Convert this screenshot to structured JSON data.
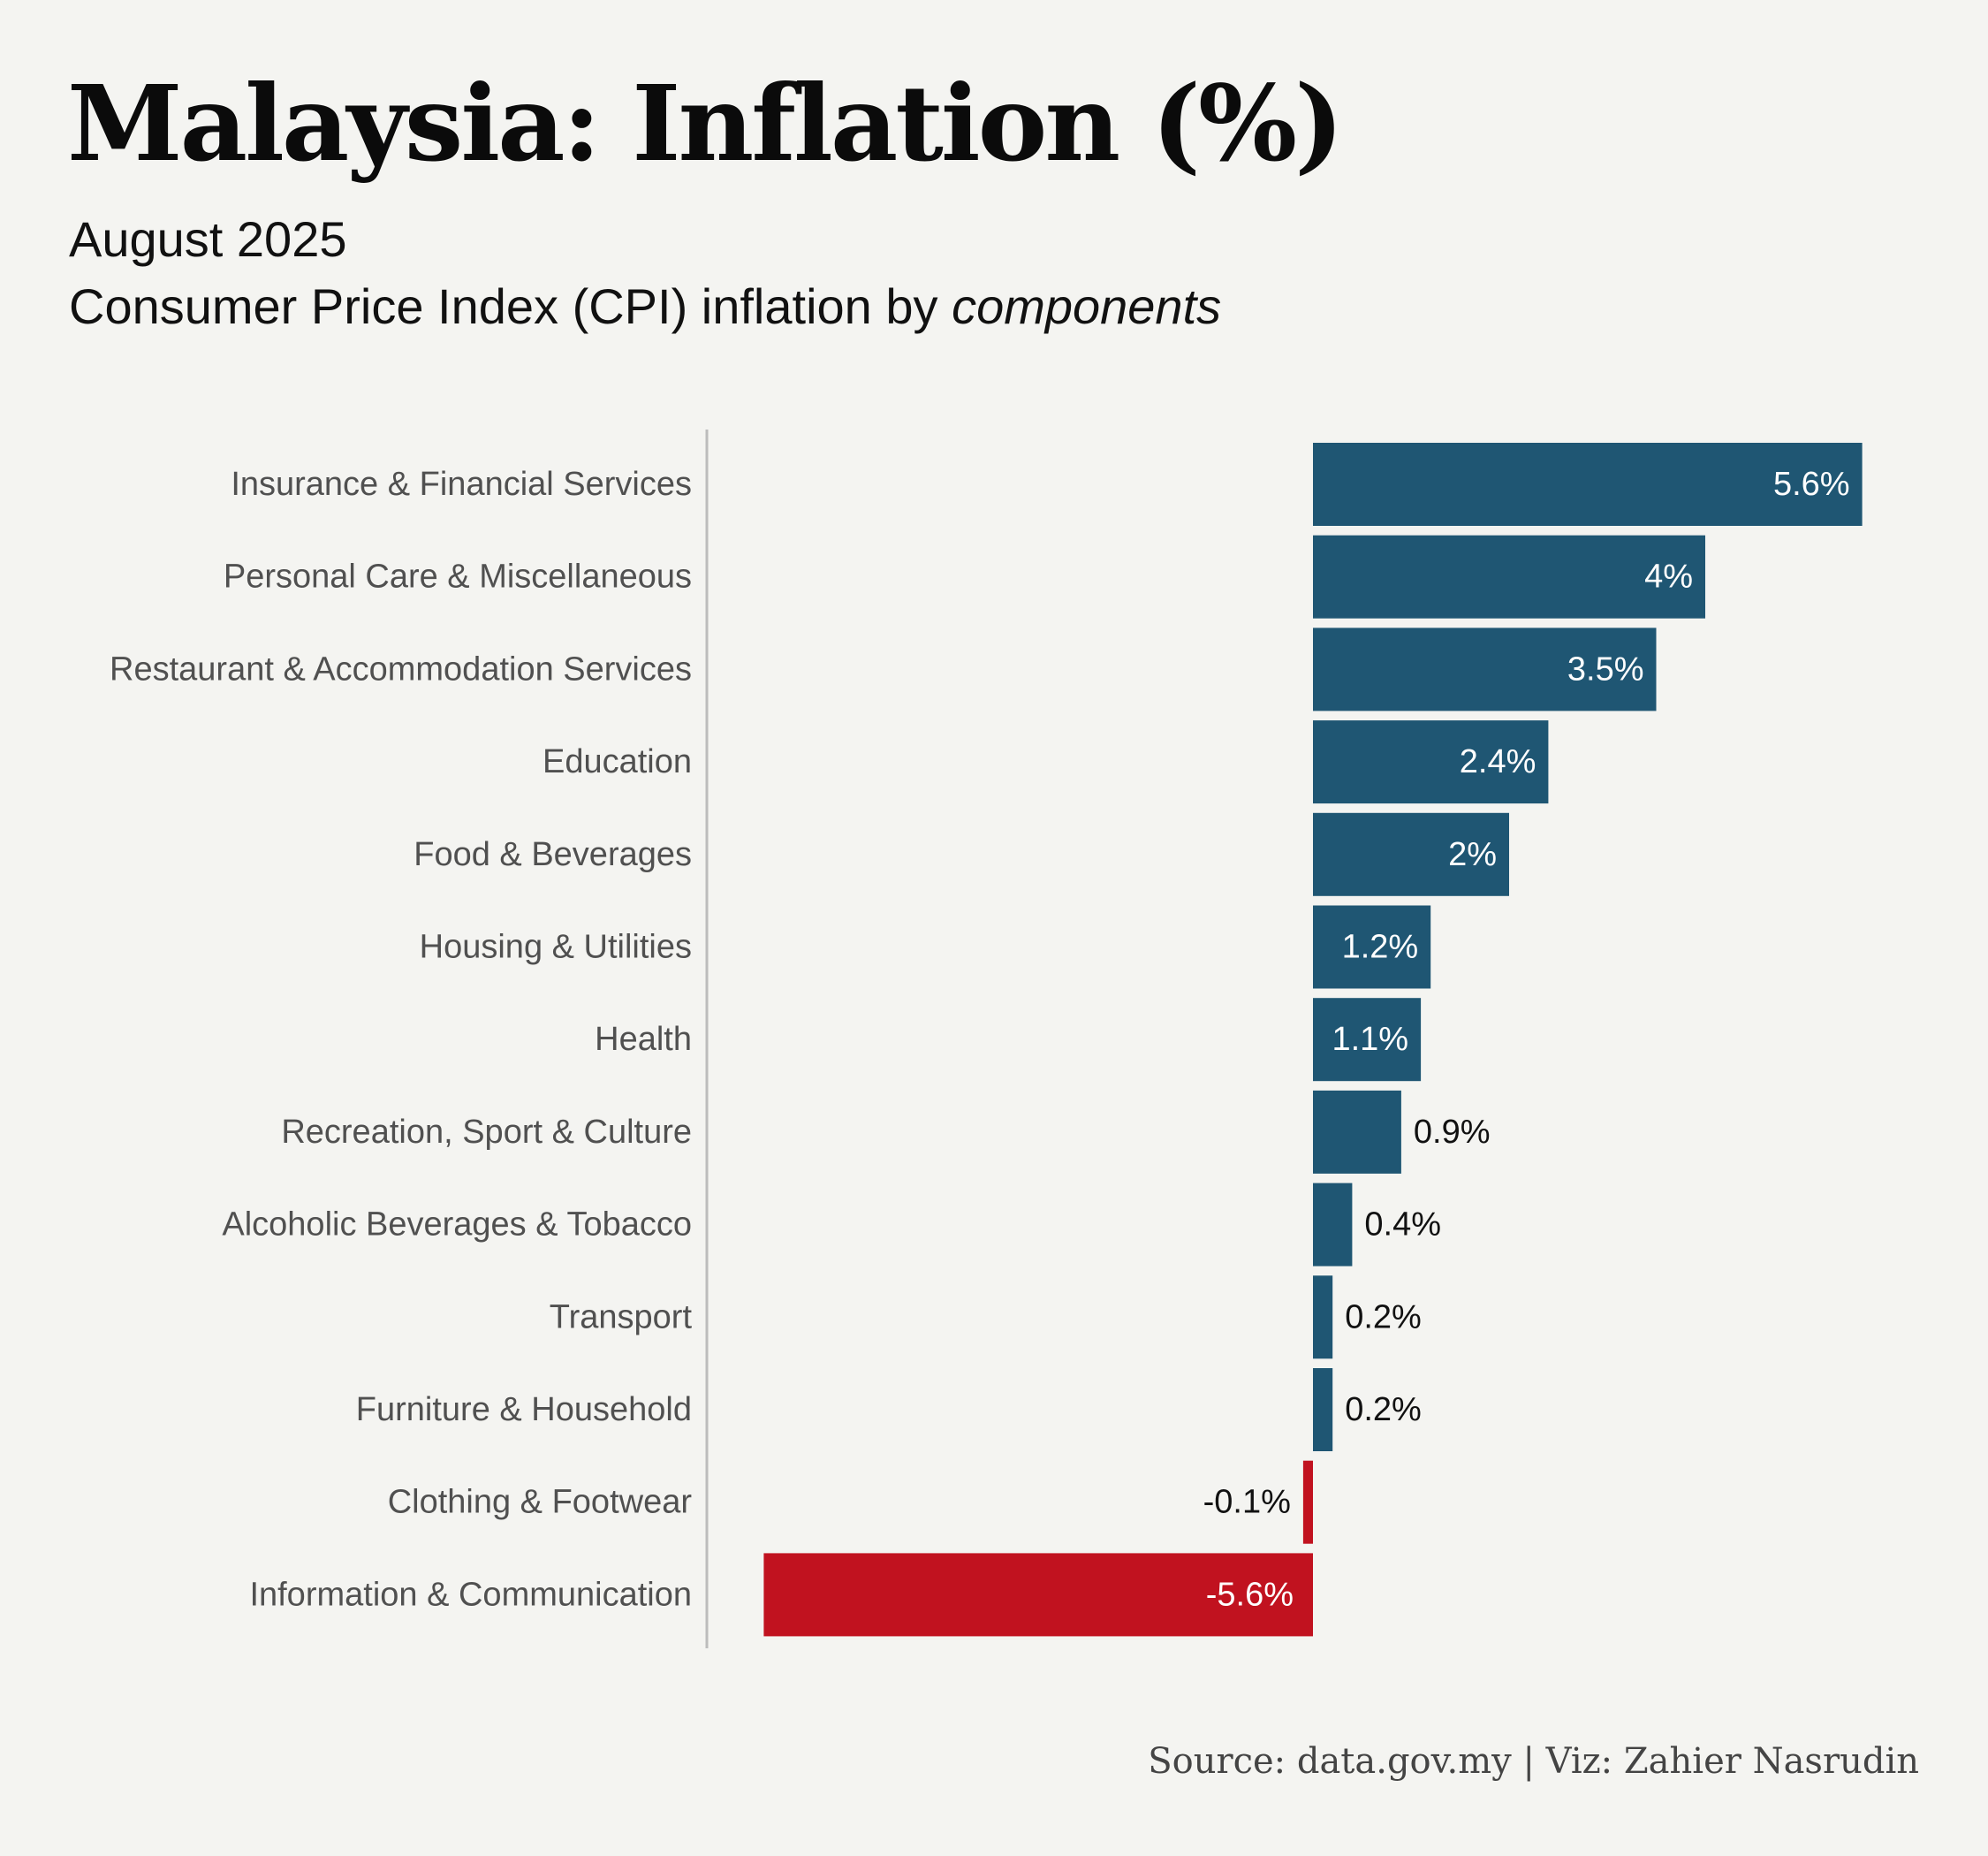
{
  "title": "Malaysia: Inflation (%)",
  "subtitle_line1": "August 2025",
  "subtitle_line2_prefix": "Consumer Price Index (CPI) inflation by ",
  "subtitle_line2_emph": "components",
  "source": "Source: data.gov.my | Viz: Zahier Nasrudin",
  "colors": {
    "background": "#f4f4f1",
    "positive": "#1f5673",
    "negative": "#c1121f",
    "category_label": "#505050",
    "axis_line": "#bcbcbc"
  },
  "chart_data": {
    "type": "bar",
    "orientation": "horizontal",
    "title": "Malaysia: Inflation (%)",
    "xlabel": "",
    "ylabel": "",
    "unit": "%",
    "xlim": [
      -5.6,
      5.6
    ],
    "grid": false,
    "categories": [
      "Insurance & Financial Services",
      "Personal Care & Miscellaneous",
      "Restaurant & Accommodation Services",
      "Education",
      "Food & Beverages",
      "Housing & Utilities",
      "Health",
      "Recreation, Sport & Culture",
      "Alcoholic Beverages & Tobacco",
      "Transport",
      "Furniture & Household",
      "Clothing & Footwear",
      "Information & Communication"
    ],
    "values": [
      5.6,
      4,
      3.5,
      2.4,
      2,
      1.2,
      1.1,
      0.9,
      0.4,
      0.2,
      0.2,
      -0.1,
      -5.6
    ],
    "labels": [
      "5.6%",
      "4%",
      "3.5%",
      "2.4%",
      "2%",
      "1.2%",
      "1.1%",
      "0.9%",
      "0.4%",
      "0.2%",
      "0.2%",
      "-0.1%",
      "-5.6%"
    ]
  }
}
